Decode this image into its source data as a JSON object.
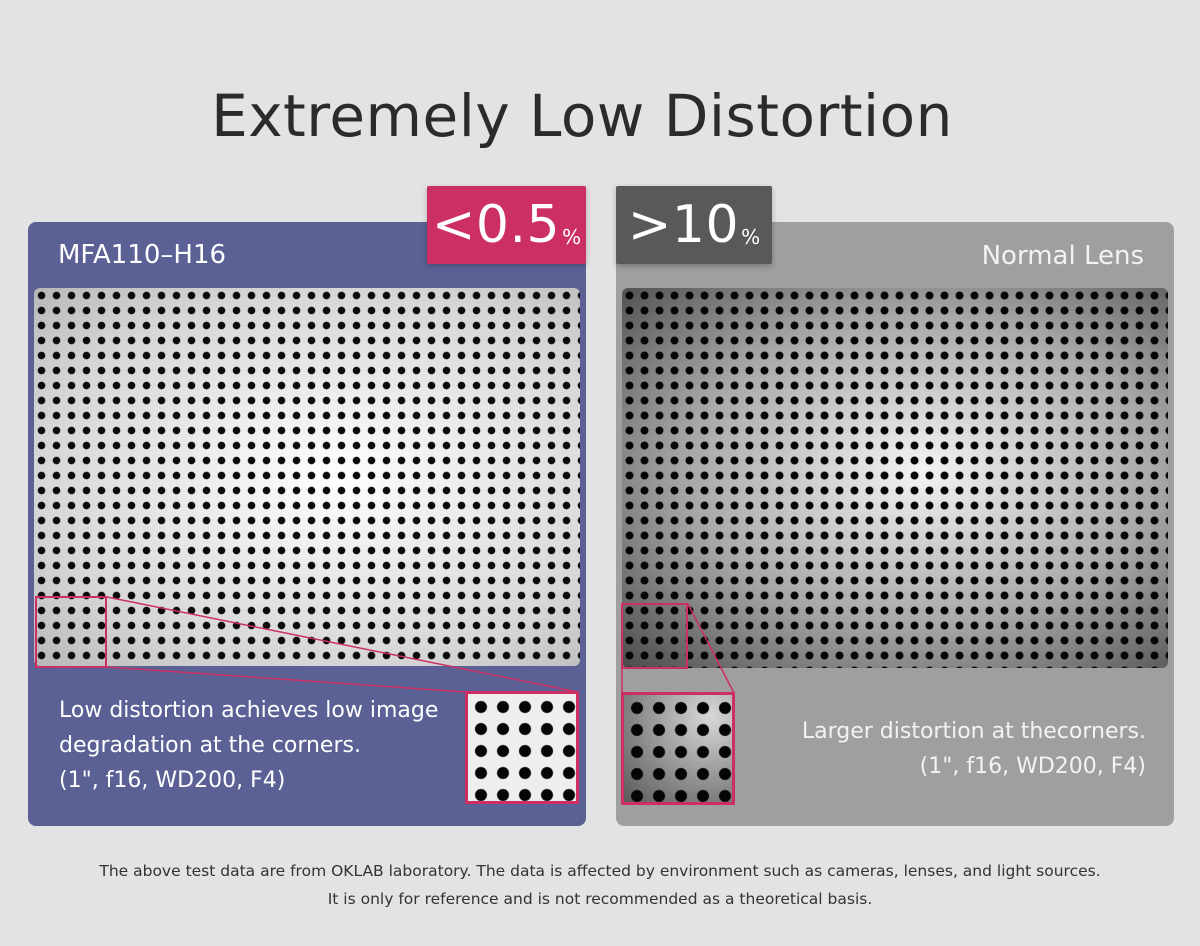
{
  "title": "Extremely Low Distortion",
  "left_panel": {
    "lens_name": "MFA110–H16",
    "badge_value": "<0.5",
    "badge_unit": "%",
    "description": [
      "Low distortion achieves low image",
      "degradation at the corners.",
      "(1\", f16, WD200, F4)"
    ],
    "color": "#5b6195",
    "badge_color": "#cc2f63"
  },
  "right_panel": {
    "lens_name": "Normal Lens",
    "badge_value": ">10",
    "badge_unit": "%",
    "description": [
      "Larger distortion at thecorners.",
      "(1\", f16, WD200, F4)"
    ],
    "color": "#9f9f9f",
    "badge_color": "#595959"
  },
  "footer": [
    "The above test data are from OKLAB laboratory. The data is affected by environment such as cameras, lenses, and light sources.",
    "It is only for reference and is not recommended as a theoretical basis."
  ]
}
